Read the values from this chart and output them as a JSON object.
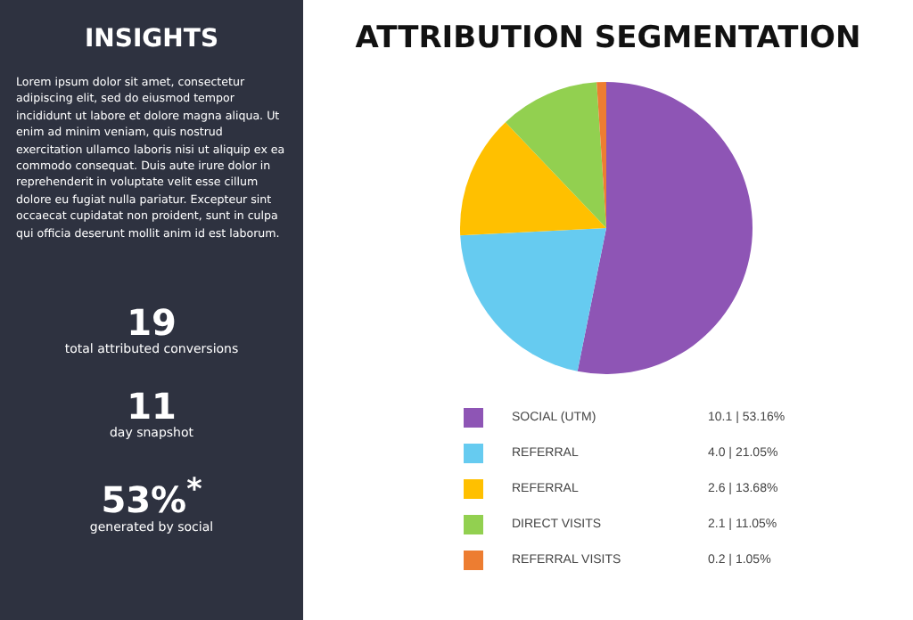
{
  "chart_data": {
    "type": "pie",
    "title": "ATTRIBUTION SEGMENTATION",
    "categories": [
      "SOCIAL (UTM)",
      "REFERRAL",
      "REFERRAL",
      "DIRECT VISITS",
      "REFERRAL VISITS"
    ],
    "values": [
      10.1,
      4.0,
      2.6,
      2.1,
      0.2
    ],
    "value_labels": [
      "10.1 | 53.16%",
      "4.0 | 21.05%",
      "2.6 | 13.68%",
      "2.1 | 11.05%",
      "0.2 | 1.05%"
    ],
    "colors": [
      "#8e55b5",
      "#66cbf0",
      "#ffc000",
      "#92d050",
      "#ed7d31"
    ],
    "legend": "bottom",
    "annotations": [
      "INSIGHTS",
      "Lorem ipsum dolor sit amet, consectetur adipiscing elit, sed do eiusmod tempor incididunt ut labore et dolore magna aliqua. Ut enim ad minim veniam, quis nostrud exercitation ullamco laboris nisi ut aliquip ex ea commodo consequat. Duis aute irure dolor in reprehenderit in voluptate velit esse cillum dolore eu fugiat nulla pariatur. Excepteur sint occaecat cupidatat non proident, sunt in culpa qui officia deserunt mollit anim id est laborum.",
      "19",
      "total attributed conversions",
      "11",
      "day snapshot",
      "53%$^{*}$",
      "generated by social"
    ]
  }
}
